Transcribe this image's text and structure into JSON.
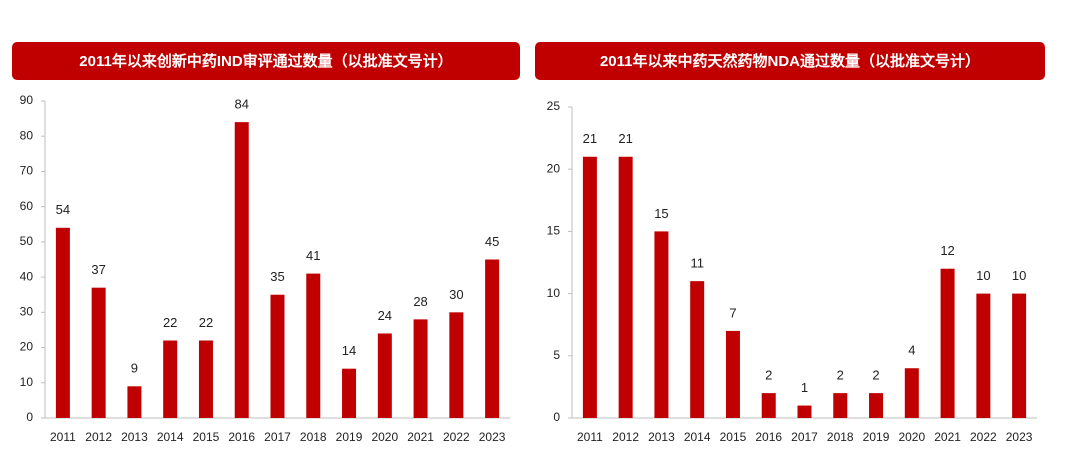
{
  "chart_data": [
    {
      "type": "bar",
      "title": "2011年以来创新中药IND审评通过数量（以批准文号计）",
      "categories": [
        "2011",
        "2012",
        "2013",
        "2014",
        "2015",
        "2016",
        "2017",
        "2018",
        "2019",
        "2020",
        "2021",
        "2022",
        "2023"
      ],
      "values": [
        54,
        37,
        9,
        22,
        22,
        84,
        35,
        41,
        14,
        24,
        28,
        30,
        45
      ],
      "color": "#c00000",
      "ylim": [
        0,
        90
      ],
      "yticks": [
        0,
        10,
        20,
        30,
        40,
        50,
        60,
        70,
        80,
        90
      ],
      "grid": false
    },
    {
      "type": "bar",
      "title": "2011年以来中药天然药物NDA通过数量（以批准文号计）",
      "categories": [
        "2011",
        "2012",
        "2013",
        "2014",
        "2015",
        "2016",
        "2017",
        "2018",
        "2019",
        "2020",
        "2021",
        "2022",
        "2023"
      ],
      "values": [
        21,
        21,
        15,
        11,
        7,
        2,
        1,
        2,
        2,
        4,
        12,
        10,
        10
      ],
      "color": "#c00000",
      "ylim": [
        0,
        25
      ],
      "yticks": [
        0,
        5,
        10,
        15,
        20,
        25
      ],
      "grid": false
    }
  ]
}
